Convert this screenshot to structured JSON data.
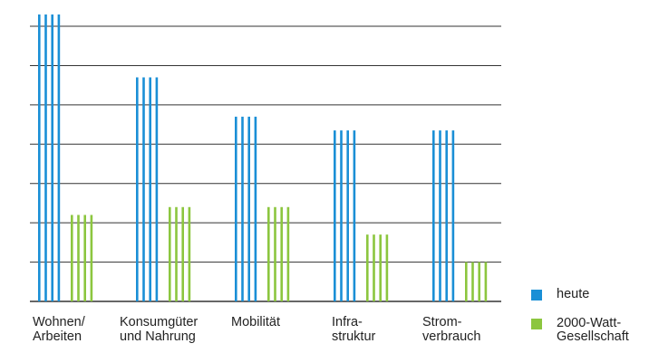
{
  "chart_data": {
    "type": "bar",
    "categories": [
      [
        "Wohnen/",
        "Arbeiten"
      ],
      [
        "Konsumgüter",
        "und Nahrung"
      ],
      [
        "Mobilität"
      ],
      [
        "Infra-",
        "struktur"
      ],
      [
        "Strom-",
        "verbrauch"
      ]
    ],
    "series": [
      {
        "name": "heute",
        "color": "#1a8fd6",
        "values": [
          7.3,
          5.7,
          4.7,
          4.35,
          4.35
        ]
      },
      {
        "name": "2000-Watt-Gesellschaft",
        "color": "#8cc63f",
        "values": [
          2.2,
          2.4,
          2.4,
          1.7,
          1.0
        ]
      }
    ],
    "ylim": [
      0,
      7.3
    ],
    "yticks": [
      0,
      1,
      2,
      3,
      4,
      5,
      6,
      7
    ],
    "grid": true,
    "legend": "bottom-right"
  }
}
